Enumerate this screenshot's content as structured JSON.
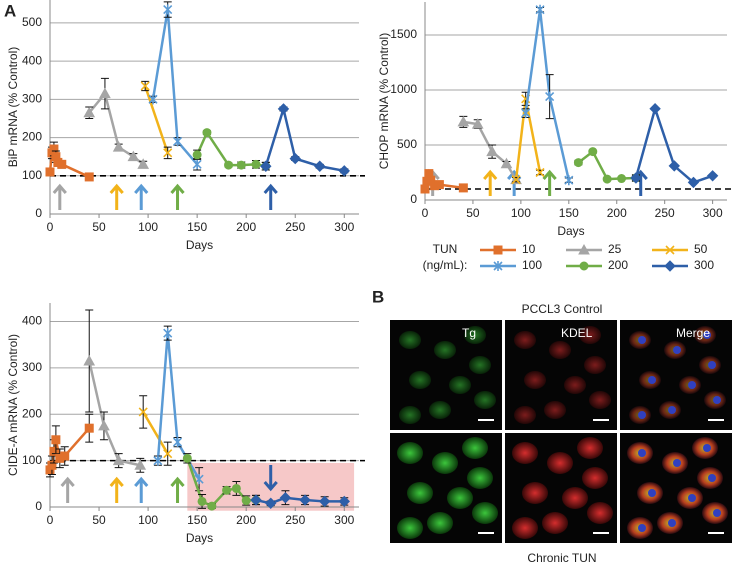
{
  "panel_a_label": "A",
  "panel_b_label": "B",
  "legend": {
    "title": "TUN",
    "unit": "(ng/mL):"
  },
  "chart_data": [
    {
      "type": "line",
      "y_label": "BiP mRNA (% Control)",
      "x_label": "Days",
      "xlim": [
        0,
        315
      ],
      "xticks": [
        0,
        50,
        100,
        150,
        200,
        250,
        300
      ],
      "ylim": [
        0,
        560
      ],
      "yticks": [
        0,
        100,
        200,
        300,
        400,
        500
      ],
      "grid": true,
      "reference_line": 100,
      "arrows": [
        {
          "x": 10,
          "color": "#a5a5a5",
          "direction": "up"
        },
        {
          "x": 68,
          "color": "#f2b31a",
          "direction": "up"
        },
        {
          "x": 93,
          "color": "#5b9bd5",
          "direction": "up"
        },
        {
          "x": 130,
          "color": "#70ad47",
          "direction": "up"
        },
        {
          "x": 225,
          "color": "#2e5fa8",
          "direction": "up"
        }
      ],
      "series": [
        {
          "name": "10",
          "color": "#e0702c",
          "marker": "square",
          "x": [
            0,
            2,
            4,
            6,
            8,
            12,
            40
          ],
          "values": [
            110,
            160,
            170,
            150,
            135,
            130,
            97
          ],
          "errors": [
            8,
            15,
            18,
            15,
            10,
            10,
            5
          ]
        },
        {
          "name": "25",
          "color": "#a5a5a5",
          "marker": "triangle",
          "x": [
            40,
            56,
            70,
            85,
            95
          ],
          "values": [
            265,
            315,
            175,
            150,
            130
          ],
          "errors": [
            15,
            40,
            8,
            8,
            8
          ]
        },
        {
          "name": "50",
          "color": "#f2b31a",
          "marker": "x",
          "x": [
            97,
            120
          ],
          "values": [
            335,
            160
          ],
          "errors": [
            12,
            15
          ]
        },
        {
          "name": "100",
          "color": "#5b9bd5",
          "marker": "star",
          "x": [
            105,
            120,
            130,
            150
          ],
          "values": [
            300,
            535,
            190,
            130
          ],
          "errors": [
            8,
            20,
            10,
            15
          ]
        },
        {
          "name": "200",
          "color": "#70ad47",
          "marker": "circle",
          "x": [
            150,
            160,
            182,
            195,
            210,
            220
          ],
          "values": [
            155,
            213,
            128,
            128,
            130,
            125
          ],
          "errors": [
            12,
            5,
            5,
            8,
            10,
            10
          ]
        },
        {
          "name": "300",
          "color": "#2e5fa8",
          "marker": "diamond",
          "x": [
            220,
            238,
            250,
            275,
            300
          ],
          "values": [
            125,
            275,
            145,
            125,
            113
          ],
          "errors": [
            10,
            5,
            5,
            5,
            5
          ]
        }
      ]
    },
    {
      "type": "line",
      "y_label": "CHOP mRNA (% Control)",
      "x_label": "Days",
      "xlim": [
        0,
        315
      ],
      "xticks": [
        0,
        50,
        100,
        150,
        200,
        250,
        300
      ],
      "ylim": [
        0,
        1800
      ],
      "yticks": [
        0,
        500,
        1000,
        1500
      ],
      "grid": true,
      "reference_line": 100,
      "arrows": [
        {
          "x": 8,
          "color": "#a5a5a5",
          "direction": "up"
        },
        {
          "x": 68,
          "color": "#f2b31a",
          "direction": "up"
        },
        {
          "x": 93,
          "color": "#5b9bd5",
          "direction": "up"
        },
        {
          "x": 130,
          "color": "#70ad47",
          "direction": "up"
        },
        {
          "x": 225,
          "color": "#2e5fa8",
          "direction": "up"
        }
      ],
      "series": [
        {
          "name": "10",
          "color": "#e0702c",
          "marker": "square",
          "x": [
            0,
            2,
            4,
            6,
            10,
            15,
            40
          ],
          "values": [
            100,
            170,
            240,
            180,
            130,
            140,
            110
          ],
          "errors": [
            20,
            30,
            30,
            25,
            15,
            15,
            10
          ]
        },
        {
          "name": "25",
          "color": "#a5a5a5",
          "marker": "triangle",
          "x": [
            40,
            55,
            70,
            85,
            95
          ],
          "values": [
            710,
            690,
            440,
            330,
            185
          ],
          "errors": [
            50,
            40,
            60,
            20,
            20
          ]
        },
        {
          "name": "50",
          "color": "#f2b31a",
          "marker": "x",
          "x": [
            95,
            105,
            120
          ],
          "values": [
            185,
            920,
            250
          ],
          "errors": [
            20,
            60,
            20
          ]
        },
        {
          "name": "100",
          "color": "#5b9bd5",
          "marker": "star",
          "x": [
            105,
            120,
            130,
            150
          ],
          "values": [
            790,
            1730,
            940,
            180
          ],
          "errors": [
            40,
            20,
            200,
            20
          ]
        },
        {
          "name": "200",
          "color": "#70ad47",
          "marker": "circle",
          "x": [
            160,
            175,
            190,
            205,
            220
          ],
          "values": [
            340,
            440,
            190,
            195,
            200
          ],
          "errors": [
            20,
            10,
            10,
            10,
            30
          ]
        },
        {
          "name": "300",
          "color": "#2e5fa8",
          "marker": "diamond",
          "x": [
            220,
            240,
            260,
            280,
            300
          ],
          "values": [
            200,
            830,
            310,
            160,
            220
          ],
          "errors": [
            20,
            10,
            10,
            10,
            10
          ]
        }
      ]
    },
    {
      "type": "line",
      "y_label": "CIDE-A mRNA (% Control)",
      "x_label": "Days",
      "xlim": [
        0,
        315
      ],
      "xticks": [
        0,
        50,
        100,
        150,
        200,
        250,
        300
      ],
      "ylim": [
        0,
        440
      ],
      "yticks": [
        0,
        100,
        200,
        300,
        400
      ],
      "grid": true,
      "reference_line": 100,
      "highlight": {
        "x": [
          140,
          310
        ],
        "y": [
          -8,
          95
        ],
        "color": "#f6c8c8"
      },
      "arrows": [
        {
          "x": 18,
          "color": "#a5a5a5",
          "direction": "up"
        },
        {
          "x": 68,
          "color": "#f2b31a",
          "direction": "up"
        },
        {
          "x": 93,
          "color": "#5b9bd5",
          "direction": "up"
        },
        {
          "x": 130,
          "color": "#70ad47",
          "direction": "up"
        },
        {
          "x": 225,
          "color": "#2e5fa8",
          "direction": "down"
        }
      ],
      "series": [
        {
          "name": "10",
          "color": "#e0702c",
          "marker": "square",
          "x": [
            0,
            2,
            4,
            6,
            10,
            15,
            40
          ],
          "values": [
            80,
            90,
            120,
            145,
            105,
            110,
            170
          ],
          "errors": [
            15,
            20,
            25,
            30,
            20,
            20,
            30
          ]
        },
        {
          "name": "25",
          "color": "#a5a5a5",
          "marker": "triangle",
          "x": [
            40,
            55,
            70,
            92
          ],
          "values": [
            315,
            175,
            100,
            90
          ],
          "errors": [
            110,
            30,
            15,
            15
          ]
        },
        {
          "name": "50",
          "color": "#f2b31a",
          "marker": "x",
          "x": [
            95,
            120
          ],
          "values": [
            205,
            115
          ],
          "errors": [
            35,
            25
          ]
        },
        {
          "name": "100",
          "color": "#5b9bd5",
          "marker": "star",
          "x": [
            110,
            120,
            130,
            152
          ],
          "values": [
            100,
            375,
            140,
            60
          ],
          "errors": [
            10,
            15,
            10,
            25
          ]
        },
        {
          "name": "200",
          "color": "#70ad47",
          "marker": "circle",
          "x": [
            140,
            155,
            165,
            180,
            190,
            200,
            210
          ],
          "values": [
            105,
            12,
            2,
            36,
            40,
            14,
            15
          ],
          "errors": [
            10,
            15,
            5,
            8,
            15,
            10,
            10
          ]
        },
        {
          "name": "300",
          "color": "#2e5fa8",
          "marker": "diamond",
          "x": [
            210,
            225,
            240,
            260,
            280,
            300
          ],
          "values": [
            15,
            8,
            20,
            15,
            12,
            12
          ],
          "errors": [
            10,
            5,
            15,
            10,
            10,
            8
          ]
        }
      ]
    }
  ],
  "micrographs": {
    "top_label": "PCCL3 Control",
    "bottom_label": "Chronic TUN",
    "columns": [
      "Tg",
      "KDEL",
      "Merge"
    ]
  }
}
